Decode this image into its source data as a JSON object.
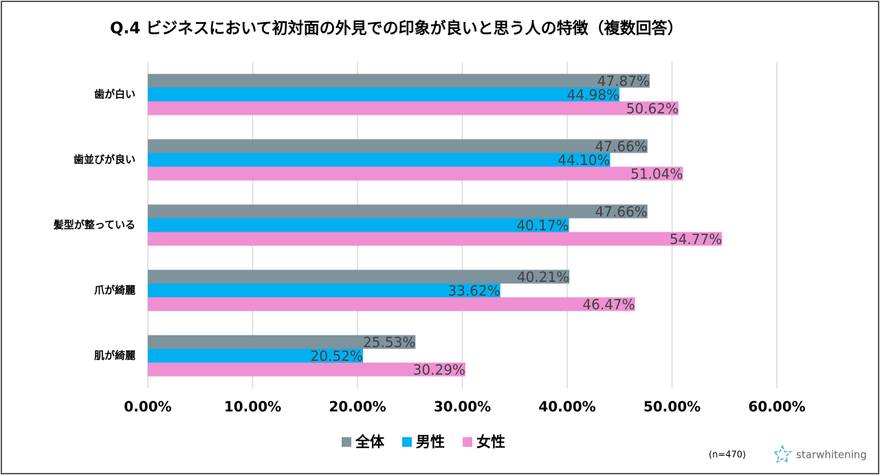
{
  "chart_data": {
    "type": "bar",
    "orientation": "horizontal",
    "title": "Q.4 ビジネスにおいて初対面の外見での印象が良いと思う人の特徴（複数回答）",
    "categories": [
      "歯が白い",
      "歯並びが良い",
      "髪型が整っている",
      "爪が綺麗",
      "肌が綺麗"
    ],
    "series": [
      {
        "name": "全体",
        "color": "#7f939d",
        "values": [
          47.87,
          47.66,
          47.66,
          40.21,
          25.53
        ],
        "value_labels": [
          "47.87%",
          "47.66%",
          "47.66%",
          "40.21%",
          "25.53%"
        ]
      },
      {
        "name": "男性",
        "color": "#00b0f0",
        "values": [
          44.98,
          44.1,
          40.17,
          33.62,
          20.52
        ],
        "value_labels": [
          "44.98%",
          "44.10%",
          "40.17%",
          "33.62%",
          "20.52%"
        ]
      },
      {
        "name": "女性",
        "color": "#ee90d2",
        "values": [
          50.62,
          51.04,
          54.77,
          46.47,
          30.29
        ],
        "value_labels": [
          "50.62%",
          "51.04%",
          "54.77%",
          "46.47%",
          "30.29%"
        ]
      }
    ],
    "xlim": [
      0,
      60
    ],
    "xticks": [
      {
        "value": 0,
        "label": "0.00%"
      },
      {
        "value": 10,
        "label": "10.00%"
      },
      {
        "value": 20,
        "label": "20.00%"
      },
      {
        "value": 30,
        "label": "30.00%"
      },
      {
        "value": 40,
        "label": "40.00%"
      },
      {
        "value": 50,
        "label": "50.00%"
      },
      {
        "value": 60,
        "label": "60.00%"
      }
    ],
    "grid": true,
    "legend": "bottom",
    "annotations": [
      "(n=470)",
      "starwhitening"
    ]
  }
}
